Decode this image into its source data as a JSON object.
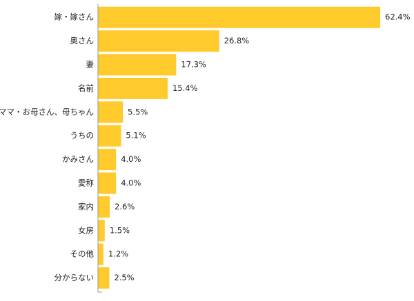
{
  "chart_data": {
    "type": "bar",
    "orientation": "horizontal",
    "categories": [
      "嫁・嫁さん",
      "奥さん",
      "妻",
      "名前",
      "ママ・お母さん、母ちゃん",
      "うちの",
      "かみさん",
      "愛称",
      "家内",
      "女房",
      "その他",
      "分からない"
    ],
    "values": [
      62.4,
      26.8,
      17.3,
      15.4,
      5.5,
      5.1,
      4.0,
      4.0,
      2.6,
      1.5,
      1.2,
      2.5
    ],
    "value_labels": [
      "62.4%",
      "26.8%",
      "17.3%",
      "15.4%",
      "5.5%",
      "5.1%",
      "4.0%",
      "4.0%",
      "2.6%",
      "1.5%",
      "1.2%",
      "2.5%"
    ],
    "unit": "%",
    "xlim": [
      0,
      62.4
    ],
    "grid": false,
    "legend": "none",
    "title": "",
    "xlabel": "",
    "ylabel": ""
  },
  "colors": {
    "bar": "#FFCA2C",
    "axis": "#999999",
    "text": "#222222"
  }
}
